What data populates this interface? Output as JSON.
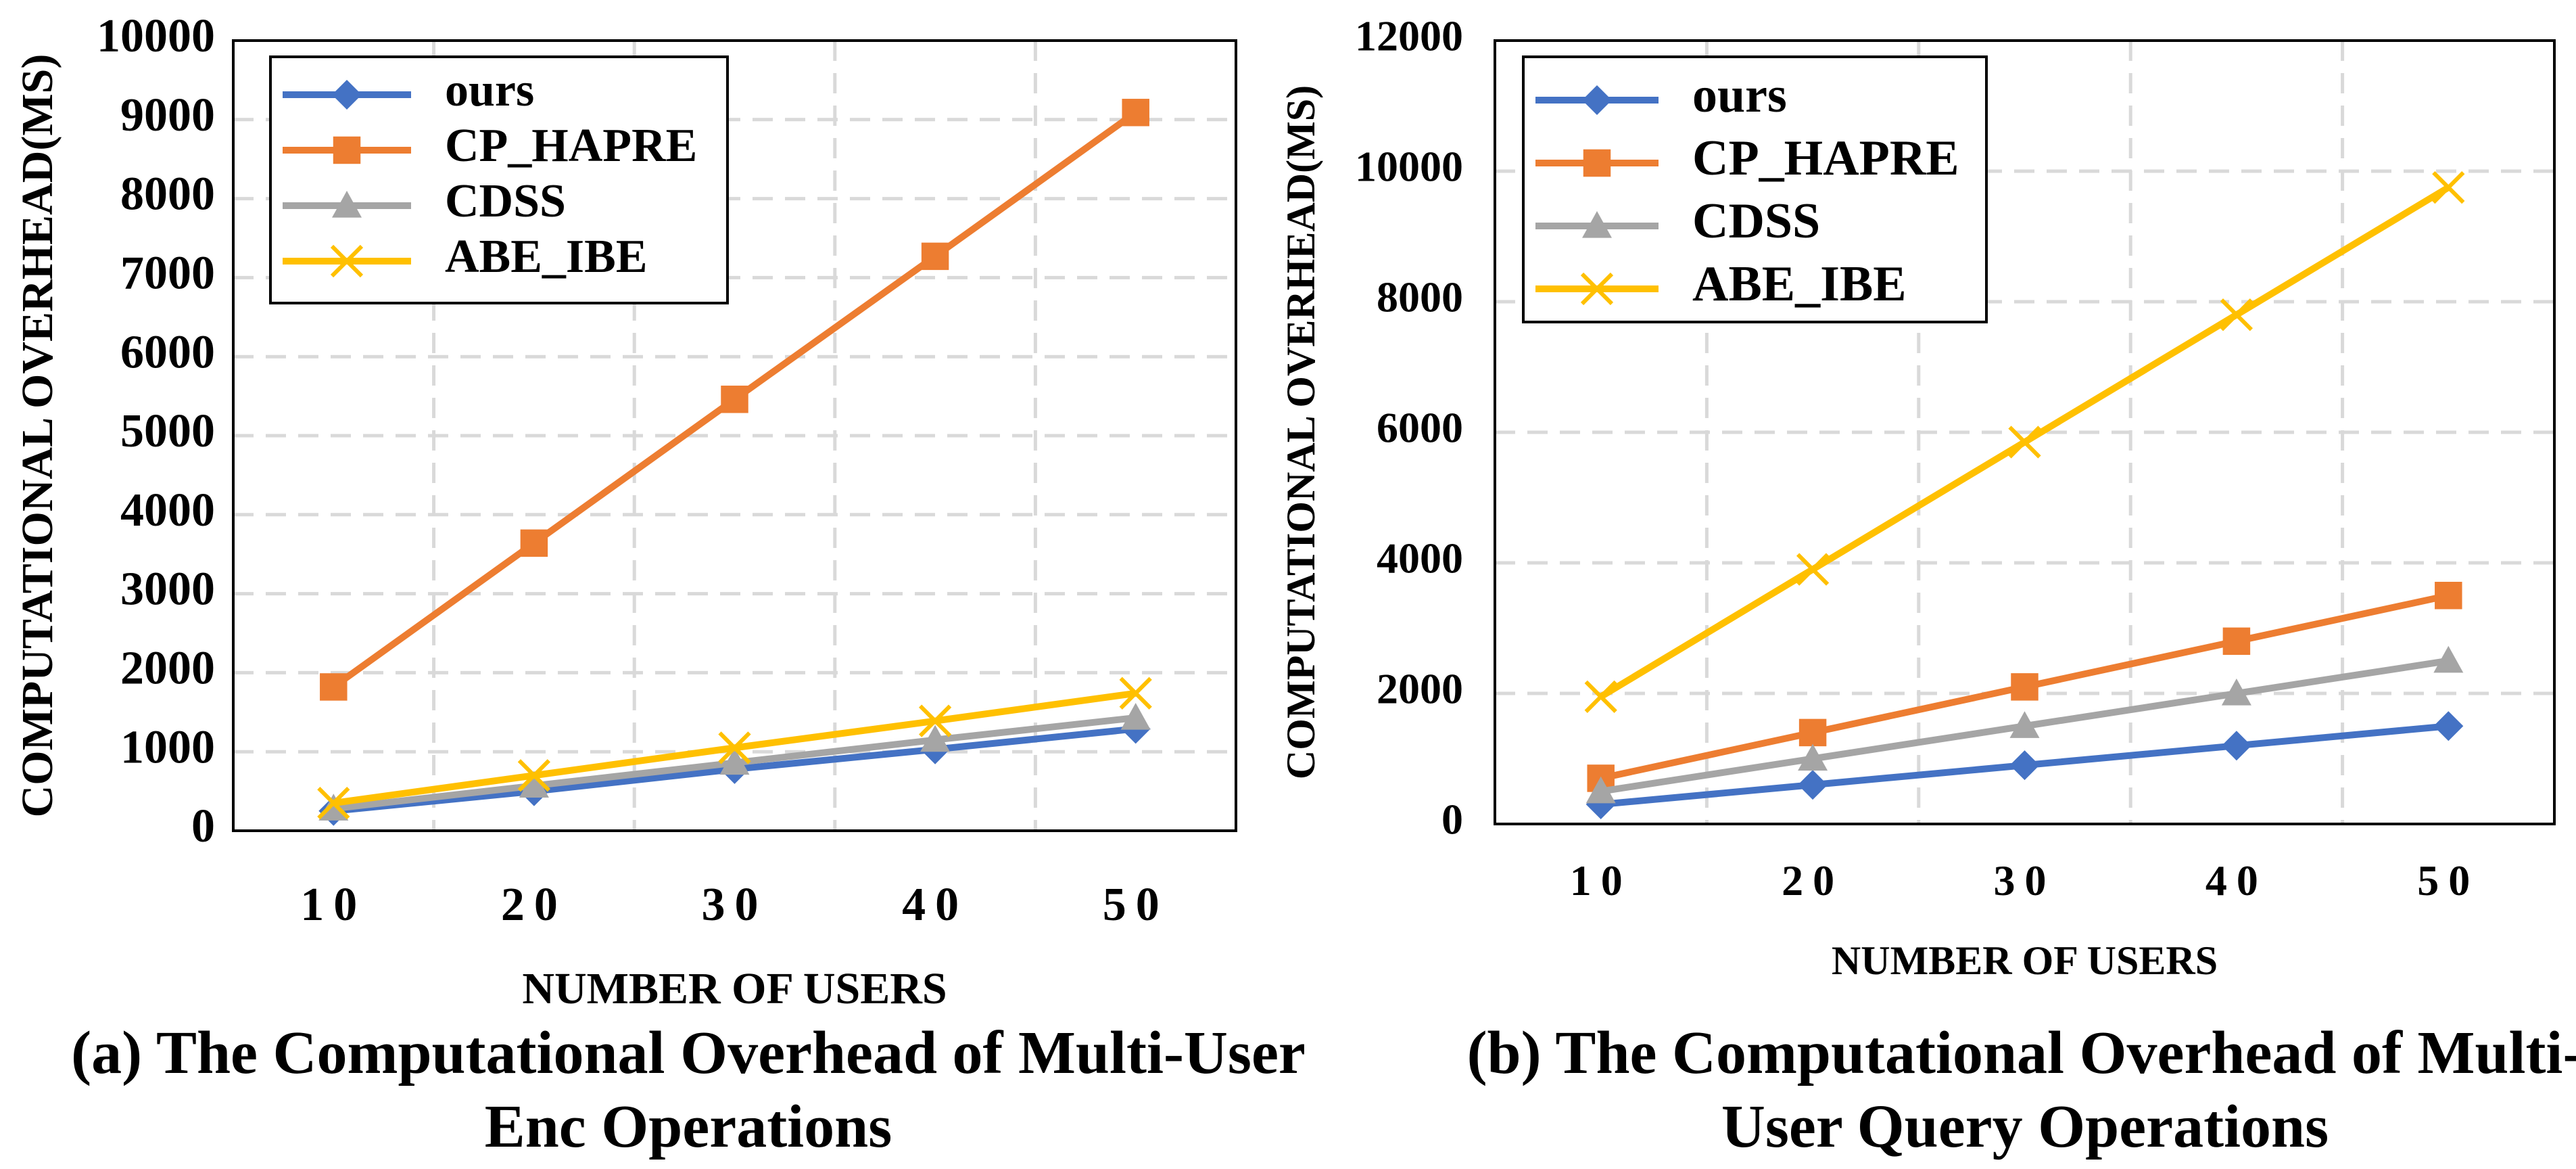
{
  "chart_data": [
    {
      "type": "line",
      "caption_lines": [
        "(a) The Computational Overhead of Multi-User",
        "Enc Operations"
      ],
      "xlabel": "NUMBER OF USERS",
      "ylabel": "COMPUTATIONAL OVERHEAD(MS)",
      "categories": [
        "10",
        "20",
        "30",
        "40",
        "50"
      ],
      "ylim": [
        0,
        10000
      ],
      "yticks": [
        0,
        1000,
        2000,
        3000,
        4000,
        5000,
        6000,
        7000,
        8000,
        9000,
        10000
      ],
      "grid": true,
      "legend_position": "top-left",
      "series": [
        {
          "name": "ours",
          "values": [
            250,
            500,
            780,
            1030,
            1290
          ],
          "color": "#4472C4",
          "marker": "diamond"
        },
        {
          "name": "CP_HAPRE",
          "values": [
            1820,
            3640,
            5460,
            7270,
            9090
          ],
          "color": "#ED7D31",
          "marker": "square"
        },
        {
          "name": "CDSS",
          "values": [
            280,
            570,
            860,
            1150,
            1430
          ],
          "color": "#A5A5A5",
          "marker": "triangle"
        },
        {
          "name": "ABE_IBE",
          "values": [
            350,
            700,
            1050,
            1390,
            1740
          ],
          "color": "#FFC000",
          "marker": "x"
        }
      ]
    },
    {
      "type": "line",
      "caption_lines": [
        "(b) The Computational Overhead of Multi-",
        "User Query Operations"
      ],
      "xlabel": "NUMBER OF USERS",
      "ylabel": "COMPUTATIONAL OVERHEAD(MS)",
      "categories": [
        "10",
        "20",
        "30",
        "40",
        "50"
      ],
      "ylim": [
        0,
        12000
      ],
      "yticks": [
        0,
        2000,
        4000,
        6000,
        8000,
        10000,
        12000
      ],
      "grid": true,
      "legend_position": "top-left",
      "series": [
        {
          "name": "ours",
          "values": [
            300,
            600,
            900,
            1200,
            1500
          ],
          "color": "#4472C4",
          "marker": "diamond"
        },
        {
          "name": "CP_HAPRE",
          "values": [
            700,
            1400,
            2100,
            2800,
            3500
          ],
          "color": "#ED7D31",
          "marker": "square"
        },
        {
          "name": "CDSS",
          "values": [
            500,
            1000,
            1500,
            2000,
            2500
          ],
          "color": "#A5A5A5",
          "marker": "triangle"
        },
        {
          "name": "ABE_IBE",
          "values": [
            1950,
            3900,
            5850,
            7800,
            9750
          ],
          "color": "#FFC000",
          "marker": "x"
        }
      ]
    }
  ]
}
